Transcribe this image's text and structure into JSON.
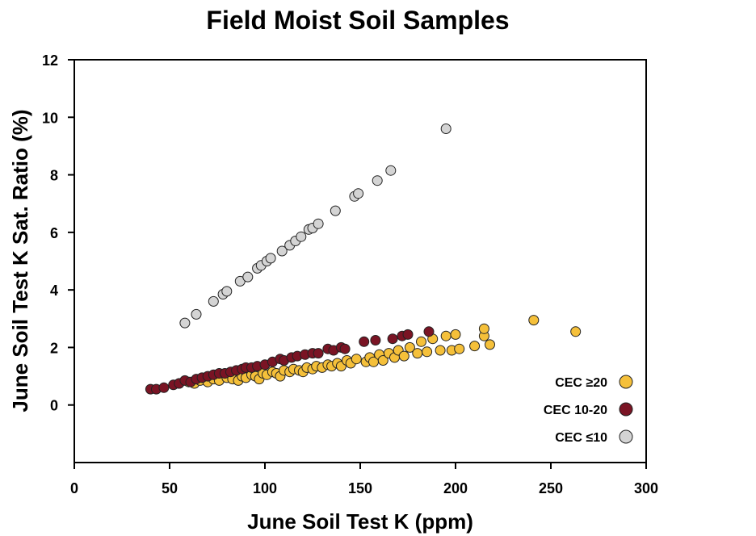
{
  "chart_data": {
    "type": "scatter",
    "title": "Field Moist Soil Samples",
    "xlabel": "June Soil Test K (ppm)",
    "ylabel": "June Soil Test K Sat. Ratio (%)",
    "xlim": [
      0,
      300
    ],
    "ylim": [
      -2,
      12
    ],
    "xticks": [
      0,
      50,
      100,
      150,
      200,
      250,
      300
    ],
    "yticks": [
      0,
      2,
      4,
      6,
      8,
      10,
      12
    ],
    "grid": false,
    "legend_position": "bottom-right",
    "series": [
      {
        "name": "CEC ≥20",
        "legend_prefix": "CEC ",
        "legend_symbol": "≥",
        "legend_suffix": "20",
        "color": "#F5C03A",
        "points": [
          [
            55,
            0.75
          ],
          [
            60,
            0.8
          ],
          [
            63,
            0.75
          ],
          [
            66,
            0.85
          ],
          [
            70,
            0.8
          ],
          [
            73,
            0.9
          ],
          [
            76,
            0.85
          ],
          [
            80,
            0.95
          ],
          [
            83,
            0.9
          ],
          [
            86,
            0.85
          ],
          [
            88,
            1.0
          ],
          [
            90,
            0.95
          ],
          [
            93,
            1.05
          ],
          [
            95,
            1.0
          ],
          [
            97,
            0.9
          ],
          [
            99,
            1.1
          ],
          [
            101,
            1.05
          ],
          [
            104,
            1.15
          ],
          [
            106,
            1.1
          ],
          [
            108,
            1.0
          ],
          [
            110,
            1.2
          ],
          [
            113,
            1.15
          ],
          [
            115,
            1.25
          ],
          [
            118,
            1.2
          ],
          [
            120,
            1.15
          ],
          [
            122,
            1.3
          ],
          [
            125,
            1.25
          ],
          [
            127,
            1.35
          ],
          [
            130,
            1.3
          ],
          [
            133,
            1.4
          ],
          [
            135,
            1.35
          ],
          [
            138,
            1.45
          ],
          [
            140,
            1.35
          ],
          [
            143,
            1.55
          ],
          [
            145,
            1.45
          ],
          [
            148,
            1.6
          ],
          [
            153,
            1.5
          ],
          [
            155,
            1.65
          ],
          [
            157,
            1.5
          ],
          [
            160,
            1.75
          ],
          [
            162,
            1.55
          ],
          [
            165,
            1.8
          ],
          [
            168,
            1.65
          ],
          [
            170,
            1.9
          ],
          [
            173,
            1.7
          ],
          [
            176,
            2.0
          ],
          [
            180,
            1.8
          ],
          [
            182,
            2.2
          ],
          [
            185,
            1.85
          ],
          [
            188,
            2.3
          ],
          [
            192,
            1.9
          ],
          [
            195,
            2.4
          ],
          [
            198,
            1.9
          ],
          [
            200,
            2.45
          ],
          [
            202,
            1.95
          ],
          [
            210,
            2.05
          ],
          [
            215,
            2.4
          ],
          [
            215,
            2.65
          ],
          [
            218,
            2.1
          ],
          [
            241,
            2.95
          ],
          [
            263,
            2.55
          ]
        ]
      },
      {
        "name": "CEC 10-20",
        "legend_prefix": "CEC ",
        "legend_symbol": "",
        "legend_suffix": "10-20",
        "color": "#7A1424",
        "points": [
          [
            40,
            0.55
          ],
          [
            43,
            0.55
          ],
          [
            47,
            0.6
          ],
          [
            52,
            0.7
          ],
          [
            55,
            0.75
          ],
          [
            58,
            0.85
          ],
          [
            61,
            0.8
          ],
          [
            64,
            0.9
          ],
          [
            67,
            0.95
          ],
          [
            70,
            1.0
          ],
          [
            73,
            1.05
          ],
          [
            76,
            1.1
          ],
          [
            79,
            1.1
          ],
          [
            82,
            1.15
          ],
          [
            85,
            1.2
          ],
          [
            88,
            1.25
          ],
          [
            90,
            1.3
          ],
          [
            93,
            1.3
          ],
          [
            96,
            1.35
          ],
          [
            100,
            1.4
          ],
          [
            104,
            1.5
          ],
          [
            108,
            1.6
          ],
          [
            110,
            1.55
          ],
          [
            114,
            1.65
          ],
          [
            117,
            1.7
          ],
          [
            121,
            1.75
          ],
          [
            125,
            1.8
          ],
          [
            128,
            1.8
          ],
          [
            133,
            1.95
          ],
          [
            136,
            1.9
          ],
          [
            140,
            2.0
          ],
          [
            142,
            1.95
          ],
          [
            152,
            2.2
          ],
          [
            158,
            2.25
          ],
          [
            167,
            2.3
          ],
          [
            172,
            2.4
          ],
          [
            175,
            2.45
          ],
          [
            186,
            2.55
          ]
        ]
      },
      {
        "name": "CEC ≤10",
        "legend_prefix": "CEC ",
        "legend_symbol": "≤",
        "legend_suffix": "10",
        "color": "#D4D4D4",
        "points": [
          [
            58,
            2.85
          ],
          [
            64,
            3.15
          ],
          [
            73,
            3.6
          ],
          [
            78,
            3.85
          ],
          [
            80,
            3.95
          ],
          [
            87,
            4.3
          ],
          [
            91,
            4.45
          ],
          [
            96,
            4.75
          ],
          [
            98,
            4.85
          ],
          [
            101,
            5.0
          ],
          [
            103,
            5.1
          ],
          [
            109,
            5.35
          ],
          [
            113,
            5.55
          ],
          [
            116,
            5.7
          ],
          [
            119,
            5.85
          ],
          [
            123,
            6.1
          ],
          [
            125,
            6.15
          ],
          [
            128,
            6.3
          ],
          [
            137,
            6.75
          ],
          [
            147,
            7.25
          ],
          [
            149,
            7.35
          ],
          [
            159,
            7.8
          ],
          [
            166,
            8.15
          ],
          [
            195,
            9.6
          ]
        ]
      }
    ]
  }
}
